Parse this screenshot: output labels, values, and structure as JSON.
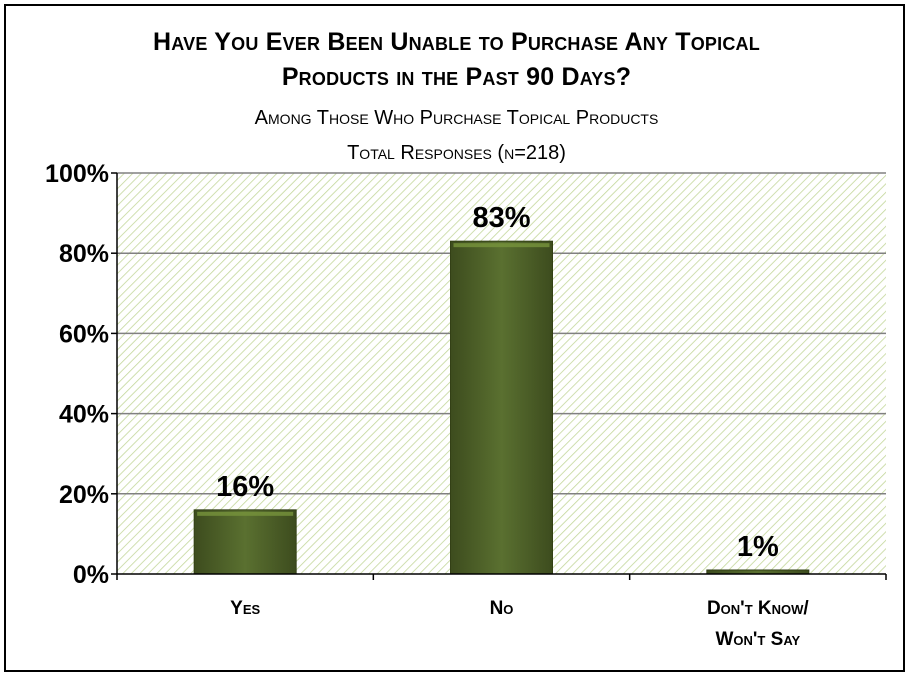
{
  "titles": {
    "line1": "Have You Ever Been Unable to Purchase Any Topical",
    "line2": "Products in the Past 90 Days?",
    "subtitle1": "Among Those Who Purchase Topical Products",
    "subtitle2": "Total Responses (n=218)"
  },
  "colors": {
    "bar_fill": "#4f6228",
    "bar_highlight": "#77933c",
    "plot_hatch": "#c4d79b",
    "gridline": "#808080"
  },
  "chart_data": {
    "type": "bar",
    "title": "Have You Ever Been Unable to Purchase Any Topical Products in the Past 90 Days?",
    "subtitle": "Among Those Who Purchase Topical Products — Total Responses (n=218)",
    "categories": [
      [
        "Yes"
      ],
      [
        "No"
      ],
      [
        "Don't Know/",
        "Won't Say"
      ]
    ],
    "values": [
      16,
      83,
      1
    ],
    "value_labels": [
      "16%",
      "83%",
      "1%"
    ],
    "ylim": [
      0,
      100
    ],
    "yticks": [
      0,
      20,
      40,
      60,
      80,
      100
    ],
    "ytick_labels": [
      "0%",
      "20%",
      "40%",
      "60%",
      "80%",
      "100%"
    ],
    "grid": true,
    "legend": "none"
  }
}
